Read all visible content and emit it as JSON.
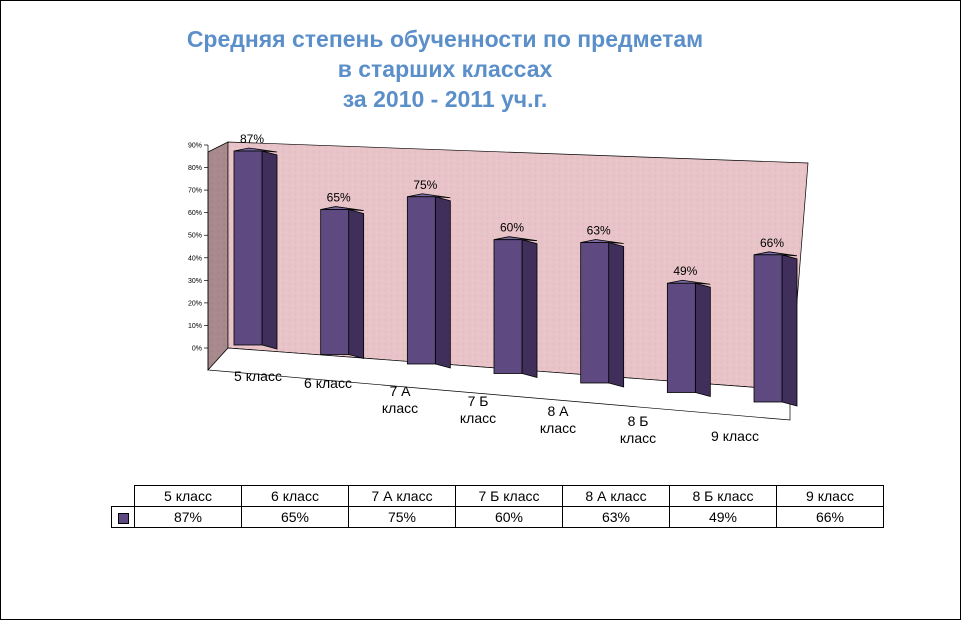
{
  "chart_data": {
    "type": "bar",
    "title_lines": [
      "Средняя степень обученности по предметам",
      "в старших классах",
      "за 2010 - 2011 уч.г."
    ],
    "categories": [
      "5 класс",
      "6 класс",
      "7 А класс",
      "7 Б класс",
      "8 А класс",
      "8 Б класс",
      "9 класс"
    ],
    "axis_category_lines": [
      [
        "5 класс"
      ],
      [
        "6 класс"
      ],
      [
        "7 А",
        "класс"
      ],
      [
        "7 Б",
        "класс"
      ],
      [
        "8 А",
        "класс"
      ],
      [
        "8 Б",
        "класс"
      ],
      [
        "9 класс"
      ]
    ],
    "values": [
      87,
      65,
      75,
      60,
      63,
      49,
      66
    ],
    "value_labels": [
      "87%",
      "65%",
      "75%",
      "60%",
      "63%",
      "49%",
      "66%"
    ],
    "y_ticks": [
      "0%",
      "10%",
      "20%",
      "30%",
      "40%",
      "50%",
      "60%",
      "70%",
      "80%",
      "90%"
    ],
    "ylim": [
      0,
      90
    ],
    "xlabel": "",
    "ylabel": "",
    "legend": "data-table-below",
    "colors": {
      "bar_front": "#5e4a80",
      "bar_side": "#3f2f5a",
      "bar_top": "#7d6ba3",
      "back_wall": "#e8c4c8",
      "side_wall": "#a88a8c",
      "title": "#5b8fc9"
    }
  },
  "table": {
    "headers": [
      "5 класс",
      "6 класс",
      "7 А класс",
      "7 Б класс",
      "8 А класс",
      "8 Б класс",
      "9 класс"
    ],
    "values": [
      "87%",
      "65%",
      "75%",
      "60%",
      "63%",
      "49%",
      "66%"
    ]
  }
}
